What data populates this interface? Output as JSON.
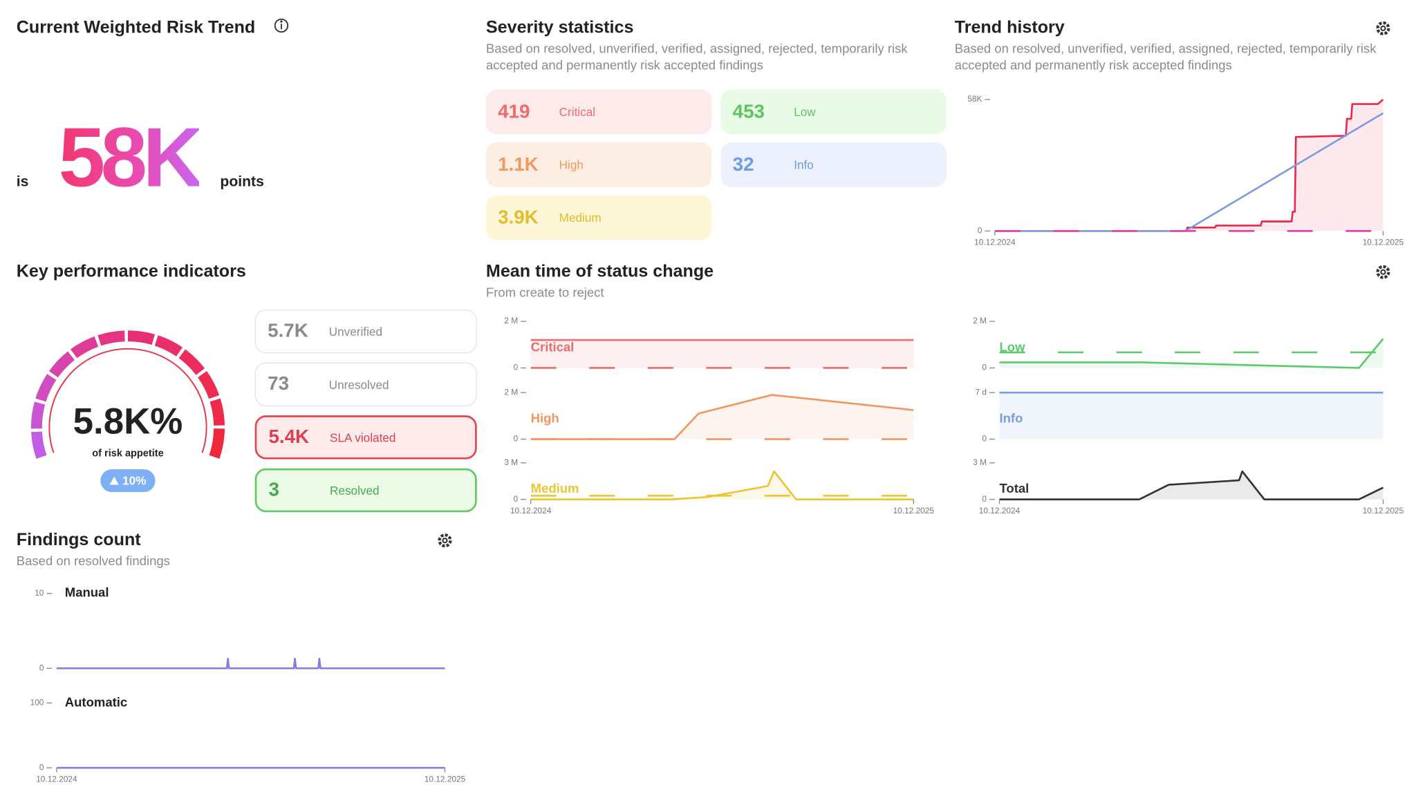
{
  "risk_trend": {
    "title": "Current Weighted Risk Trend",
    "prefix": "is",
    "value": "58K",
    "suffix": "points"
  },
  "severity": {
    "title": "Severity statistics",
    "subtitle": "Based on resolved, unverified, verified, assigned, rejected, temporarily risk accepted and permanently risk accepted findings",
    "cards": [
      {
        "value": "419",
        "label": "Critical"
      },
      {
        "value": "1.1K",
        "label": "High"
      },
      {
        "value": "3.9K",
        "label": "Medium"
      },
      {
        "value": "453",
        "label": "Low"
      },
      {
        "value": "32",
        "label": "Info"
      }
    ]
  },
  "trend_history": {
    "title": "Trend history",
    "subtitle": "Based on resolved, unverified, verified, assigned, rejected, temporarily risk accepted and permanently risk accepted findings",
    "chart": {
      "type": "line",
      "xlim": [
        0,
        365
      ],
      "ylim": [
        0,
        58000
      ],
      "yticks": [
        {
          "value": 58000,
          "label": "58K"
        },
        0
      ],
      "xticks": [
        {
          "value": 0,
          "label": "10.12.2024"
        },
        {
          "value": 365,
          "label": "10.12.2025"
        }
      ],
      "series": [
        {
          "color": "#e8294b",
          "area": true,
          "x": [
            0,
            180,
            181,
            207,
            208,
            250,
            251,
            279,
            280,
            282,
            283,
            330,
            331,
            335,
            336,
            360,
            365
          ],
          "values": [
            0,
            0,
            1500,
            1500,
            2400,
            2400,
            4200,
            4200,
            8500,
            8500,
            41500,
            42000,
            49500,
            49500,
            56000,
            56000,
            58000
          ]
        },
        {
          "color": "#7f9be0",
          "x": [
            0,
            179,
            365
          ],
          "values": [
            0,
            0,
            52000
          ]
        },
        {
          "color": "#e83e9c",
          "dashed": true,
          "x": [
            0,
            365
          ],
          "values": [
            0,
            0
          ]
        }
      ]
    }
  },
  "kpi": {
    "title": "Key performance indicators",
    "gauge_value": "5.8K%",
    "gauge_caption": "of risk appetite",
    "change": "10%",
    "cards": [
      {
        "value": "5.7K",
        "label": "Unverified"
      },
      {
        "value": "73",
        "label": "Unresolved"
      },
      {
        "value": "5.4K",
        "label": "SLA violated"
      },
      {
        "value": "3",
        "label": "Resolved"
      }
    ]
  },
  "mean_time": {
    "title": "Mean time of status change",
    "subtitle": "From create to reject",
    "xticks": [
      {
        "value": 0,
        "label": "10.12.2024"
      },
      {
        "value": 365,
        "label": "10.12.2025"
      }
    ],
    "panels": [
      {
        "type": "line",
        "label": "Critical",
        "xlim": [
          0,
          365
        ],
        "ylim": [
          0,
          2
        ],
        "yticks": [
          {
            "value": 2,
            "label": "2 M"
          },
          0
        ],
        "series": [
          {
            "color": "#ee6b6b",
            "area": true,
            "x": [
              0,
              365
            ],
            "values": [
              1.2,
              1.2
            ]
          },
          {
            "color": "#ee6b6b",
            "dashed": true,
            "x": [
              0,
              365
            ],
            "values": [
              0,
              0
            ]
          }
        ]
      },
      {
        "type": "line",
        "label": "High",
        "xlim": [
          0,
          365
        ],
        "ylim": [
          0,
          2
        ],
        "yticks": [
          {
            "value": 2,
            "label": "2 M"
          },
          0
        ],
        "series": [
          {
            "color": "#f2955e",
            "area": true,
            "x": [
              0,
              137,
              160,
              230,
              365
            ],
            "values": [
              0,
              0,
              1.1,
              1.9,
              1.25
            ]
          },
          {
            "color": "#f2955e",
            "dashed": true,
            "x": [
              0,
              365
            ],
            "values": [
              0,
              0
            ]
          }
        ]
      },
      {
        "type": "line",
        "label": "Medium",
        "xlim": [
          0,
          365
        ],
        "ylim": [
          0,
          3
        ],
        "yticks": [
          {
            "value": 3,
            "label": "3 M"
          },
          0
        ],
        "series": [
          {
            "color": "#ecc530",
            "area": true,
            "x": [
              0,
              134,
              169,
              226,
              232,
              253,
              365
            ],
            "values": [
              0,
              0,
              0.2,
              1.1,
              2.3,
              0,
              0
            ]
          },
          {
            "color": "#ecc530",
            "dashed": true,
            "x": [
              0,
              365
            ],
            "values": [
              0.3,
              0.3
            ]
          }
        ]
      }
    ]
  },
  "status_detail": {
    "xticks": [
      {
        "value": 0,
        "label": "10.12.2024"
      },
      {
        "value": 365,
        "label": "10.12.2025"
      }
    ],
    "panels": [
      {
        "type": "line",
        "label": "Low",
        "xlim": [
          0,
          365
        ],
        "ylim": [
          0,
          2
        ],
        "yticks": [
          {
            "value": 2,
            "label": "2 M"
          },
          0
        ],
        "series": [
          {
            "color": "#5cc96b",
            "area": true,
            "x": [
              0,
              136,
              342,
              365
            ],
            "values": [
              0.24,
              0.24,
              0,
              1.25
            ]
          },
          {
            "color": "#5cc96b",
            "dashed": true,
            "x": [
              0,
              365
            ],
            "values": [
              0.67,
              0.67
            ]
          }
        ]
      },
      {
        "type": "line",
        "label": "Info",
        "xlim": [
          0,
          365
        ],
        "ylim": [
          0,
          7
        ],
        "yticks": [
          {
            "value": 7,
            "label": "7 d"
          },
          0
        ],
        "series": [
          {
            "color": "#7a9be0",
            "area": true,
            "x": [
              0,
              365
            ],
            "values": [
              7,
              7
            ]
          }
        ]
      },
      {
        "type": "line",
        "label": "Total",
        "xlim": [
          0,
          365
        ],
        "ylim": [
          0,
          3
        ],
        "yticks": [
          {
            "value": 3,
            "label": "3 M"
          },
          0
        ],
        "series": [
          {
            "color": "#333333",
            "area": true,
            "x": [
              0,
              133,
              161,
              228,
              231,
              252,
              342,
              365
            ],
            "values": [
              0,
              0,
              1.2,
              1.57,
              2.3,
              0,
              0,
              0.97
            ]
          }
        ]
      }
    ]
  },
  "findings": {
    "title": "Findings count",
    "subtitle": "Based on resolved findings",
    "xticks": [
      {
        "value": 0,
        "label": "10.12.2024"
      },
      {
        "value": 365,
        "label": "10.12.2025"
      }
    ],
    "panels": [
      {
        "type": "line",
        "label": "Manual",
        "xlim": [
          0,
          365
        ],
        "ylim": [
          0,
          10
        ],
        "yticks": [
          10,
          0
        ],
        "series": [
          {
            "color": "#8a7be0",
            "x": [
              0,
              160,
              161,
              162,
              223,
              224,
              225,
              246,
              247,
              248,
              365
            ],
            "values": [
              0,
              0,
              1.3,
              0,
              0,
              1.3,
              0,
              0,
              1.3,
              0,
              0
            ]
          }
        ]
      },
      {
        "type": "line",
        "label": "Automatic",
        "xlim": [
          0,
          365
        ],
        "ylim": [
          0,
          100
        ],
        "yticks": [
          100,
          0
        ],
        "series": [
          {
            "color": "#8a7be0",
            "x": [
              0,
              365
            ],
            "values": [
              0,
              0
            ]
          }
        ]
      }
    ]
  }
}
